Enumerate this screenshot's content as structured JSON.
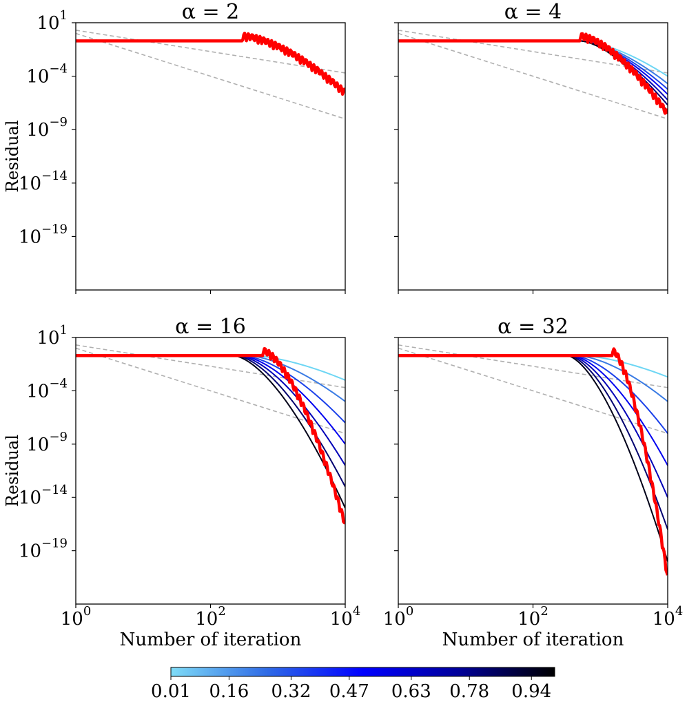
{
  "chart_data": [
    {
      "type": "line",
      "title": "α = 2",
      "alpha": 2,
      "xlabel": "",
      "ylabel": "Residual",
      "xscale": "log",
      "yscale": "log",
      "xlim": [
        1,
        10000
      ],
      "ylim": [
        1e-24,
        10
      ],
      "x_ticks": [
        {
          "value": 1,
          "label": "10^0"
        },
        {
          "value": 100,
          "label": "10^2"
        },
        {
          "value": 10000,
          "label": "10^4"
        }
      ],
      "y_ticks": [
        {
          "value": 10,
          "label": "10^1"
        },
        {
          "value": 0.0001,
          "label": "10^-4"
        },
        {
          "value": 1e-09,
          "label": "10^-9"
        },
        {
          "value": 1e-14,
          "label": "10^-14"
        },
        {
          "value": 1e-19,
          "label": "10^-19"
        }
      ],
      "x_tick_labels_shown": false,
      "y_tick_labels_shown": true,
      "reference_lines": [
        {
          "name": "reference 1/k",
          "style": "dashed",
          "color": "#b0b0b0",
          "y_at_x1": 2,
          "slope_decades_per_decade": -1
        },
        {
          "name": "reference 1/k^2",
          "style": "dashed",
          "color": "#b0b0b0",
          "y_at_x1": 1,
          "slope_decades_per_decade": -2
        }
      ],
      "series": [],
      "red_curve": {
        "name": "restart",
        "color": "#ff0000",
        "plateau": 0.2,
        "knee_x": 300,
        "final_y": 1e-06,
        "oscillating": true
      }
    },
    {
      "type": "line",
      "title": "α = 4",
      "alpha": 4,
      "xlabel": "",
      "ylabel": "",
      "xscale": "log",
      "yscale": "log",
      "xlim": [
        1,
        10000
      ],
      "ylim": [
        1e-24,
        10
      ],
      "x_ticks": [
        {
          "value": 1,
          "label": "10^0"
        },
        {
          "value": 100,
          "label": "10^2"
        },
        {
          "value": 10000,
          "label": "10^4"
        }
      ],
      "y_ticks": [
        {
          "value": 10,
          "label": "10^1"
        },
        {
          "value": 0.0001,
          "label": "10^-4"
        },
        {
          "value": 1e-09,
          "label": "10^-9"
        },
        {
          "value": 1e-14,
          "label": "10^-14"
        },
        {
          "value": 1e-19,
          "label": "10^-19"
        }
      ],
      "x_tick_labels_shown": false,
      "y_tick_labels_shown": false,
      "reference_lines": [
        {
          "name": "reference 1/k",
          "style": "dashed",
          "color": "#b0b0b0",
          "y_at_x1": 2,
          "slope_decades_per_decade": -1
        },
        {
          "name": "reference 1/k^2",
          "style": "dashed",
          "color": "#b0b0b0",
          "y_at_x1": 1,
          "slope_decades_per_decade": -2
        }
      ],
      "series": [
        {
          "param": 0.01,
          "color": "#6dd6f4",
          "knee_x": 500,
          "final_y": 0.0001
        },
        {
          "param": 0.16,
          "color": "#3a7be4",
          "knee_x": 500,
          "final_y": 2e-05
        },
        {
          "param": 0.32,
          "color": "#1a40ea",
          "knee_x": 500,
          "final_y": 6e-06
        },
        {
          "param": 0.47,
          "color": "#0000f0",
          "knee_x": 500,
          "final_y": 2e-06
        },
        {
          "param": 0.63,
          "color": "#0000b8",
          "knee_x": 500,
          "final_y": 6e-07
        },
        {
          "param": 0.78,
          "color": "#000070",
          "knee_x": 500,
          "final_y": 2e-07
        },
        {
          "param": 0.94,
          "color": "#000018",
          "knee_x": 500,
          "final_y": 5e-08
        }
      ],
      "red_curve": {
        "name": "restart",
        "color": "#ff0000",
        "plateau": 0.2,
        "knee_x": 500,
        "final_y": 1e-08,
        "oscillating": true
      }
    },
    {
      "type": "line",
      "title": "α = 16",
      "alpha": 16,
      "xlabel": "Number of iteration",
      "ylabel": "Residual",
      "xscale": "log",
      "yscale": "log",
      "xlim": [
        1,
        10000
      ],
      "ylim": [
        1e-24,
        10
      ],
      "x_ticks": [
        {
          "value": 1,
          "label": "10^0"
        },
        {
          "value": 100,
          "label": "10^2"
        },
        {
          "value": 10000,
          "label": "10^4"
        }
      ],
      "y_ticks": [
        {
          "value": 10,
          "label": "10^1"
        },
        {
          "value": 0.0001,
          "label": "10^-4"
        },
        {
          "value": 1e-09,
          "label": "10^-9"
        },
        {
          "value": 1e-14,
          "label": "10^-14"
        },
        {
          "value": 1e-19,
          "label": "10^-19"
        }
      ],
      "x_tick_labels_shown": true,
      "y_tick_labels_shown": true,
      "reference_lines": [
        {
          "name": "reference 1/k",
          "style": "dashed",
          "color": "#b0b0b0",
          "y_at_x1": 2,
          "slope_decades_per_decade": -1
        },
        {
          "name": "reference 1/k^2",
          "style": "dashed",
          "color": "#b0b0b0",
          "y_at_x1": 1,
          "slope_decades_per_decade": -2
        }
      ],
      "series": [
        {
          "param": 0.01,
          "color": "#6dd6f4",
          "knee_x": 400,
          "final_y": 0.001
        },
        {
          "param": 0.16,
          "color": "#3a7be4",
          "knee_x": 350,
          "final_y": 1e-05
        },
        {
          "param": 0.32,
          "color": "#1a40ea",
          "knee_x": 300,
          "final_y": 1e-07
        },
        {
          "param": 0.47,
          "color": "#0000f0",
          "knee_x": 280,
          "final_y": 1e-09
        },
        {
          "param": 0.63,
          "color": "#0000b8",
          "knee_x": 260,
          "final_y": 1e-11
        },
        {
          "param": 0.78,
          "color": "#000070",
          "knee_x": 240,
          "final_y": 1e-13
        },
        {
          "param": 0.94,
          "color": "#000018",
          "knee_x": 220,
          "final_y": 1e-15
        }
      ],
      "red_curve": {
        "name": "restart",
        "color": "#ff0000",
        "plateau": 0.2,
        "knee_x": 600,
        "final_y": 1e-17,
        "oscillating": true
      }
    },
    {
      "type": "line",
      "title": "α = 32",
      "alpha": 32,
      "xlabel": "Number of iteration",
      "ylabel": "",
      "xscale": "log",
      "yscale": "log",
      "xlim": [
        1,
        10000
      ],
      "ylim": [
        1e-24,
        10
      ],
      "x_ticks": [
        {
          "value": 1,
          "label": "10^0"
        },
        {
          "value": 100,
          "label": "10^2"
        },
        {
          "value": 10000,
          "label": "10^4"
        }
      ],
      "y_ticks": [
        {
          "value": 10,
          "label": "10^1"
        },
        {
          "value": 0.0001,
          "label": "10^-4"
        },
        {
          "value": 1e-09,
          "label": "10^-9"
        },
        {
          "value": 1e-14,
          "label": "10^-14"
        },
        {
          "value": 1e-19,
          "label": "10^-19"
        }
      ],
      "x_tick_labels_shown": true,
      "y_tick_labels_shown": false,
      "reference_lines": [
        {
          "name": "reference 1/k",
          "style": "dashed",
          "color": "#b0b0b0",
          "y_at_x1": 2,
          "slope_decades_per_decade": -1
        },
        {
          "name": "reference 1/k^2",
          "style": "dashed",
          "color": "#b0b0b0",
          "y_at_x1": 1,
          "slope_decades_per_decade": -2
        }
      ],
      "series": [
        {
          "param": 0.01,
          "color": "#6dd6f4",
          "knee_x": 500,
          "final_y": 0.002
        },
        {
          "param": 0.16,
          "color": "#3a7be4",
          "knee_x": 450,
          "final_y": 1e-05
        },
        {
          "param": 0.32,
          "color": "#1a40ea",
          "knee_x": 400,
          "final_y": 1e-08
        },
        {
          "param": 0.47,
          "color": "#0000f0",
          "knee_x": 380,
          "final_y": 1e-11
        },
        {
          "param": 0.63,
          "color": "#0000b8",
          "knee_x": 360,
          "final_y": 1e-14
        },
        {
          "param": 0.78,
          "color": "#000070",
          "knee_x": 340,
          "final_y": 1e-17
        },
        {
          "param": 0.94,
          "color": "#000018",
          "knee_x": 320,
          "final_y": 1e-20
        }
      ],
      "red_curve": {
        "name": "restart",
        "color": "#ff0000",
        "plateau": 0.2,
        "knee_x": 1500,
        "final_y": 1e-22,
        "oscillating": true
      }
    }
  ],
  "colorbar": {
    "orientation": "horizontal",
    "placement": "bottom",
    "ticks": [
      "0.01",
      "0.16",
      "0.32",
      "0.47",
      "0.63",
      "0.78",
      "0.94"
    ],
    "range": [
      0.01,
      1.0
    ],
    "colors": [
      "#7fdcf7",
      "#2f6be6",
      "#0000ff",
      "#00009a",
      "#000000"
    ]
  }
}
